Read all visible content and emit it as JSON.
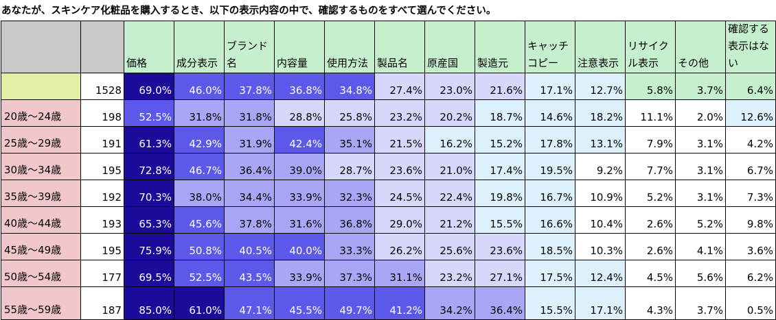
{
  "title": "あなたが、スキンケア化粧品を購入するとき、以下の表示内容の中で、確認するものをすべて選んでください。",
  "colors": {
    "header_gray": "#c8c8c8",
    "header_green": "#c6efce",
    "total_label": "#e2f0a6",
    "total_n": "#ffffff",
    "age_label": "#f2c7cb",
    "high": "#1c0a9a",
    "mid": "#5b58ea",
    "low": "#a9a7f5",
    "pale": "#d7d6fb",
    "cyan": "#dcf1fb",
    "white": "#ffffff"
  },
  "chart_data": {
    "type": "table",
    "title": "あなたが、スキンケア化粧品を購入するとき、以下の表示内容の中で、確認するものをすべて選んでください。",
    "columns": [
      "",
      "",
      "価格",
      "成分表示",
      "ブランド名",
      "内容量",
      "使用方法",
      "製品名",
      "原産国",
      "製造元",
      "キャッチコピー",
      "注意表示",
      "リサイクル表示",
      "その他",
      "確認する表示はない"
    ],
    "rows": [
      {
        "label": "",
        "n": "1528",
        "values": [
          "69.0%",
          "46.0%",
          "37.8%",
          "36.8%",
          "34.8%",
          "27.4%",
          "23.0%",
          "21.6%",
          "17.1%",
          "12.7%",
          "5.8%",
          "3.7%",
          "6.4%"
        ]
      },
      {
        "label": "20歳～24歳",
        "n": "198",
        "values": [
          "52.5%",
          "31.8%",
          "31.8%",
          "28.8%",
          "25.8%",
          "23.2%",
          "20.2%",
          "18.7%",
          "14.6%",
          "18.2%",
          "11.1%",
          "2.0%",
          "12.6%"
        ]
      },
      {
        "label": "25歳～29歳",
        "n": "191",
        "values": [
          "61.3%",
          "42.9%",
          "31.9%",
          "42.4%",
          "35.1%",
          "21.5%",
          "16.2%",
          "15.2%",
          "17.8%",
          "13.1%",
          "7.9%",
          "3.1%",
          "4.2%"
        ]
      },
      {
        "label": "30歳～34歳",
        "n": "195",
        "values": [
          "72.8%",
          "46.7%",
          "36.4%",
          "39.0%",
          "28.7%",
          "23.6%",
          "21.0%",
          "17.4%",
          "19.5%",
          "9.2%",
          "7.7%",
          "3.1%",
          "6.7%"
        ]
      },
      {
        "label": "35歳～39歳",
        "n": "192",
        "values": [
          "70.3%",
          "38.0%",
          "34.4%",
          "33.9%",
          "32.3%",
          "24.5%",
          "22.4%",
          "19.8%",
          "16.7%",
          "10.9%",
          "5.2%",
          "3.1%",
          "7.3%"
        ]
      },
      {
        "label": "40歳～44歳",
        "n": "193",
        "values": [
          "65.3%",
          "45.6%",
          "37.8%",
          "31.6%",
          "36.8%",
          "29.0%",
          "21.2%",
          "15.5%",
          "16.6%",
          "10.4%",
          "2.6%",
          "5.2%",
          "9.8%"
        ]
      },
      {
        "label": "45歳～49歳",
        "n": "195",
        "values": [
          "75.9%",
          "50.8%",
          "40.5%",
          "40.0%",
          "33.3%",
          "26.2%",
          "25.6%",
          "23.6%",
          "18.5%",
          "10.3%",
          "2.6%",
          "4.1%",
          "3.6%"
        ]
      },
      {
        "label": "50歳～54歳",
        "n": "177",
        "values": [
          "69.5%",
          "52.5%",
          "43.5%",
          "33.9%",
          "37.3%",
          "31.1%",
          "23.2%",
          "27.1%",
          "17.5%",
          "12.4%",
          "4.5%",
          "5.6%",
          "6.2%"
        ]
      },
      {
        "label": "55歳～59歳",
        "n": "187",
        "values": [
          "85.0%",
          "61.0%",
          "47.1%",
          "45.5%",
          "49.7%",
          "41.2%",
          "34.2%",
          "36.4%",
          "15.5%",
          "17.1%",
          "4.3%",
          "3.7%",
          "0.5%"
        ]
      }
    ]
  }
}
